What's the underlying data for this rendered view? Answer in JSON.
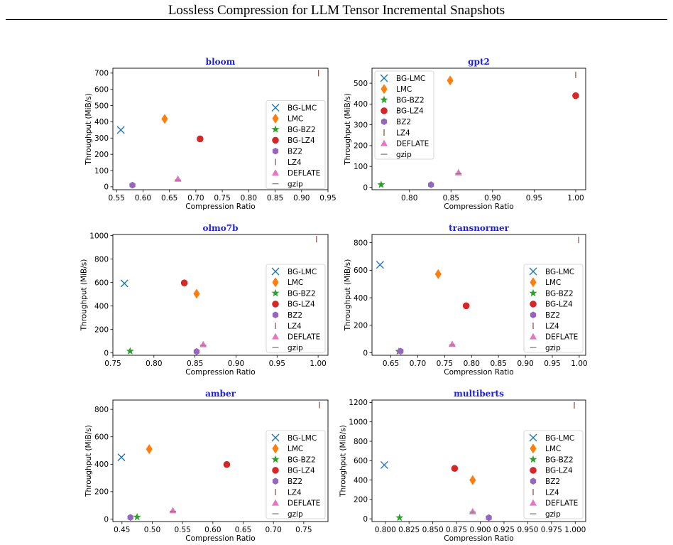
{
  "page": {
    "title": "Lossless Compression for LLM Tensor Incremental Snapshots"
  },
  "legend_entries": [
    "BG-LMC",
    "LMC",
    "BG-BZ2",
    "BG-LZ4",
    "BZ2",
    "LZ4",
    "DEFLATE",
    "gzip"
  ],
  "colors": {
    "BG-LMC": "#1f77b4",
    "LMC": "#ff7f0e",
    "BG-BZ2": "#2ca02c",
    "BG-LZ4": "#d62728",
    "BZ2": "#9467bd",
    "LZ4": "#8c564b",
    "DEFLATE": "#e377c2",
    "gzip": "#7f7f7f",
    "title": "#1f1fd6"
  },
  "markers": {
    "BG-LMC": "x",
    "LMC": "thin-diamond",
    "BG-BZ2": "star",
    "BG-LZ4": "circle",
    "BZ2": "hexagon",
    "LZ4": "vline",
    "DEFLATE": "triangle-up",
    "gzip": "hline"
  },
  "chart_data": [
    {
      "type": "scatter",
      "title": "bloom",
      "xlabel": "Compression Ratio",
      "ylabel": "Throughput (MiB/s)",
      "xlim": [
        0.543,
        0.95
      ],
      "ylim": [
        -18,
        730
      ],
      "xticks": [
        "0.55",
        "0.60",
        "0.65",
        "0.70",
        "0.75",
        "0.80",
        "0.85",
        "0.90",
        "0.95"
      ],
      "yticks": [
        "0",
        "100",
        "200",
        "300",
        "400",
        "500",
        "600",
        "700"
      ],
      "legend": "center-right",
      "points": [
        {
          "series": "BG-LMC",
          "x": 0.558,
          "y": 350
        },
        {
          "series": "LMC",
          "x": 0.641,
          "y": 418
        },
        {
          "series": "BG-LZ4",
          "x": 0.708,
          "y": 295
        },
        {
          "series": "BZ2",
          "x": 0.58,
          "y": 10
        },
        {
          "series": "DEFLATE",
          "x": 0.666,
          "y": 48
        },
        {
          "series": "gzip",
          "x": 0.666,
          "y": 42
        },
        {
          "series": "LZ4",
          "x": 0.932,
          "y": 700
        }
      ]
    },
    {
      "type": "scatter",
      "title": "gpt2",
      "xlabel": "Compression Ratio",
      "ylabel": "Throughput (MiB/s)",
      "xlim": [
        0.755,
        1.012
      ],
      "ylim": [
        -12,
        572
      ],
      "xticks": [
        "0.80",
        "0.85",
        "0.90",
        "0.95",
        "1.00"
      ],
      "yticks": [
        "0",
        "100",
        "200",
        "300",
        "400",
        "500"
      ],
      "legend": "upper-left",
      "points": [
        {
          "series": "BG-BZ2",
          "x": 0.766,
          "y": 12
        },
        {
          "series": "LMC",
          "x": 0.849,
          "y": 513
        },
        {
          "series": "BG-LZ4",
          "x": 1.0,
          "y": 440
        },
        {
          "series": "BZ2",
          "x": 0.826,
          "y": 12
        },
        {
          "series": "DEFLATE",
          "x": 0.859,
          "y": 70
        },
        {
          "series": "gzip",
          "x": 0.859,
          "y": 65
        },
        {
          "series": "LZ4",
          "x": 1.0,
          "y": 540
        }
      ]
    },
    {
      "type": "scatter",
      "title": "olmo7b",
      "xlabel": "Compression Ratio",
      "ylabel": "Throughput (MiB/s)",
      "xlim": [
        0.75,
        1.012
      ],
      "ylim": [
        -20,
        1010
      ],
      "xticks": [
        "0.75",
        "0.80",
        "0.85",
        "0.90",
        "0.95",
        "1.00"
      ],
      "yticks": [
        "0",
        "200",
        "400",
        "600",
        "800",
        "1000"
      ],
      "legend": "lower-right",
      "points": [
        {
          "series": "BG-LMC",
          "x": 0.764,
          "y": 593
        },
        {
          "series": "BG-LZ4",
          "x": 0.837,
          "y": 597
        },
        {
          "series": "LMC",
          "x": 0.852,
          "y": 505
        },
        {
          "series": "BG-BZ2",
          "x": 0.771,
          "y": 15
        },
        {
          "series": "BZ2",
          "x": 0.852,
          "y": 12
        },
        {
          "series": "DEFLATE",
          "x": 0.86,
          "y": 72
        },
        {
          "series": "gzip",
          "x": 0.86,
          "y": 66
        },
        {
          "series": "LZ4",
          "x": 0.998,
          "y": 970
        }
      ]
    },
    {
      "type": "scatter",
      "title": "transnormer",
      "xlabel": "Compression Ratio",
      "ylabel": "Throughput (MiB/s)",
      "xlim": [
        0.615,
        1.012
      ],
      "ylim": [
        -18,
        860
      ],
      "xticks": [
        "0.65",
        "0.70",
        "0.75",
        "0.80",
        "0.85",
        "0.90",
        "0.95",
        "1.00"
      ],
      "yticks": [
        "0",
        "200",
        "400",
        "600",
        "800"
      ],
      "legend": "lower-right",
      "points": [
        {
          "series": "BG-LMC",
          "x": 0.63,
          "y": 640
        },
        {
          "series": "LMC",
          "x": 0.738,
          "y": 572
        },
        {
          "series": "BG-LZ4",
          "x": 0.79,
          "y": 342
        },
        {
          "series": "BG-BZ2",
          "x": 0.665,
          "y": 10
        },
        {
          "series": "BZ2",
          "x": 0.668,
          "y": 12
        },
        {
          "series": "DEFLATE",
          "x": 0.764,
          "y": 62
        },
        {
          "series": "gzip",
          "x": 0.764,
          "y": 57
        },
        {
          "series": "LZ4",
          "x": 0.999,
          "y": 820
        }
      ]
    },
    {
      "type": "scatter",
      "title": "amber",
      "xlabel": "Compression Ratio",
      "ylabel": "Throughput (MiB/s)",
      "xlim": [
        0.435,
        0.79
      ],
      "ylim": [
        -18,
        868
      ],
      "xticks": [
        "0.45",
        "0.50",
        "0.55",
        "0.60",
        "0.65",
        "0.70",
        "0.75"
      ],
      "yticks": [
        "0",
        "200",
        "400",
        "600",
        "800"
      ],
      "legend": "lower-right",
      "points": [
        {
          "series": "BG-LMC",
          "x": 0.449,
          "y": 450
        },
        {
          "series": "LMC",
          "x": 0.495,
          "y": 510
        },
        {
          "series": "BG-LZ4",
          "x": 0.623,
          "y": 398
        },
        {
          "series": "BG-BZ2",
          "x": 0.475,
          "y": 15
        },
        {
          "series": "BZ2",
          "x": 0.464,
          "y": 12
        },
        {
          "series": "DEFLATE",
          "x": 0.534,
          "y": 62
        },
        {
          "series": "gzip",
          "x": 0.534,
          "y": 57
        },
        {
          "series": "LZ4",
          "x": 0.776,
          "y": 832
        }
      ]
    },
    {
      "type": "scatter",
      "title": "multiberts",
      "xlabel": "Compression Ratio",
      "ylabel": "Throughput (MiB/s)",
      "xlim": [
        0.786,
        1.011
      ],
      "ylim": [
        -28,
        1225
      ],
      "xticks": [
        "0.800",
        "0.825",
        "0.850",
        "0.875",
        "0.900",
        "0.925",
        "0.950",
        "0.975",
        "1.000"
      ],
      "yticks": [
        "0",
        "200",
        "400",
        "600",
        "800",
        "1000",
        "1200"
      ],
      "legend": "lower-right",
      "points": [
        {
          "series": "BG-LMC",
          "x": 0.799,
          "y": 555
        },
        {
          "series": "BG-LZ4",
          "x": 0.873,
          "y": 520
        },
        {
          "series": "LMC",
          "x": 0.892,
          "y": 400
        },
        {
          "series": "BG-BZ2",
          "x": 0.815,
          "y": 12
        },
        {
          "series": "BZ2",
          "x": 0.909,
          "y": 12
        },
        {
          "series": "DEFLATE",
          "x": 0.892,
          "y": 75
        },
        {
          "series": "gzip",
          "x": 0.892,
          "y": 70
        },
        {
          "series": "LZ4",
          "x": 0.999,
          "y": 1170
        }
      ]
    }
  ]
}
